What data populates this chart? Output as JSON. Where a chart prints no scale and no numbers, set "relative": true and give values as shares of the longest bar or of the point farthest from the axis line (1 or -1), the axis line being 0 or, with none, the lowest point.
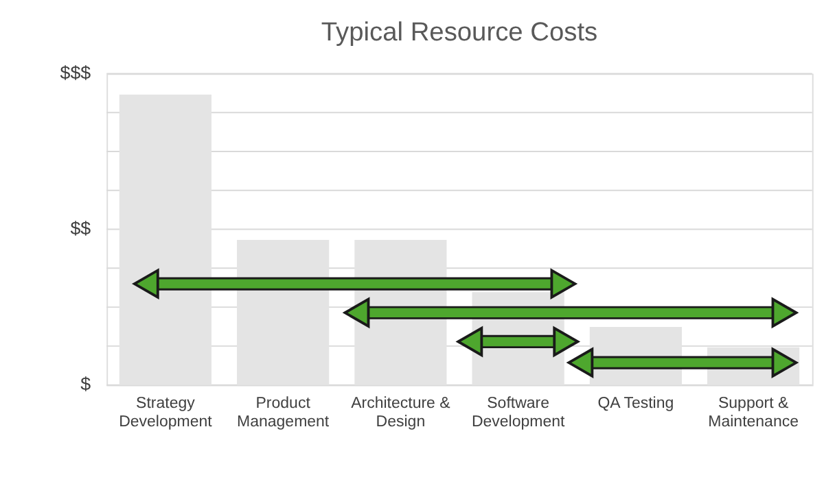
{
  "chart_data": {
    "type": "bar",
    "title": "Typical Resource Costs",
    "relative": true,
    "categories": [
      "Strategy Development",
      "Product Management",
      "Architecture & Design",
      "Software Development",
      "QA Testing",
      "Support & Maintenance"
    ],
    "values": [
      1,
      0.5,
      0.5,
      0.32,
      0.2,
      0.13
    ],
    "color": "#e4e4e4",
    "annotations": [
      "$",
      "$$",
      "$$$"
    ],
    "grid": "y"
  }
}
